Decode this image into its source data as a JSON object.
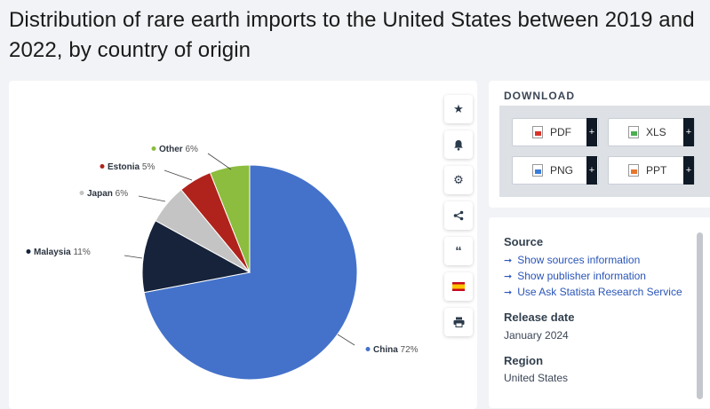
{
  "page": {
    "title": "Distribution of rare earth imports to the United States between 2019 and 2022, by country of origin"
  },
  "chart_data": {
    "type": "pie",
    "title": "Distribution of rare earth imports to the United States between 2019 and 2022, by country of origin",
    "slices": [
      {
        "label": "China",
        "value": 72,
        "display": "72%",
        "color": "#4472ca"
      },
      {
        "label": "Malaysia",
        "value": 11,
        "display": "11%",
        "color": "#16233a"
      },
      {
        "label": "Japan",
        "value": 6,
        "display": "6%",
        "color": "#c4c4c4"
      },
      {
        "label": "Estonia",
        "value": 5,
        "display": "5%",
        "color": "#b0231c"
      },
      {
        "label": "Other",
        "value": 6,
        "display": "6%",
        "color": "#8cbd3f"
      }
    ]
  },
  "toolbar": {
    "icons": [
      "star-icon",
      "bell-icon",
      "gear-icon",
      "share-icon",
      "quote-icon",
      "flag-icon",
      "print-icon"
    ]
  },
  "download": {
    "heading": "DOWNLOAD",
    "buttons": [
      {
        "label": "PDF",
        "color": "#d9342b"
      },
      {
        "label": "XLS",
        "color": "#4caf50"
      },
      {
        "label": "PNG",
        "color": "#3b7dd8"
      },
      {
        "label": "PPT",
        "color": "#e8772e"
      }
    ],
    "plus": "+"
  },
  "info": {
    "source_heading": "Source",
    "links": [
      "Show sources information",
      "Show publisher information",
      "Use Ask Statista Research Service"
    ],
    "release_heading": "Release date",
    "release_value": "January 2024",
    "region_heading": "Region",
    "region_value": "United States"
  }
}
